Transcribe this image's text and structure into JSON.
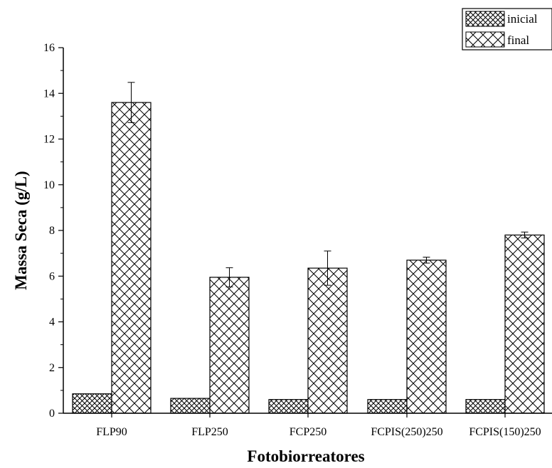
{
  "chart_data": {
    "type": "bar",
    "title": "",
    "xlabel": "Fotobiorreatores",
    "ylabel": "Massa Seca (g/L)",
    "ylim": [
      0,
      16
    ],
    "yticks": [
      "0",
      "2",
      "4",
      "6",
      "8",
      "10",
      "12",
      "14",
      "16"
    ],
    "grid": false,
    "legend_position": "top-right",
    "categories": [
      "FLP90",
      "FLP250",
      "FCP250",
      "FCPIS(250)250",
      "FCPIS(150)250"
    ],
    "series": [
      {
        "name": "inicial",
        "pattern": "dense-crosshatch",
        "values": [
          0.85,
          0.65,
          0.6,
          0.6,
          0.6
        ],
        "errors": [
          0,
          0,
          0,
          0,
          0
        ]
      },
      {
        "name": "final",
        "pattern": "wide-crosshatch",
        "values": [
          13.6,
          5.95,
          6.35,
          6.7,
          7.8
        ],
        "errors": [
          0.88,
          0.42,
          0.75,
          0.13,
          0.13
        ]
      }
    ]
  }
}
